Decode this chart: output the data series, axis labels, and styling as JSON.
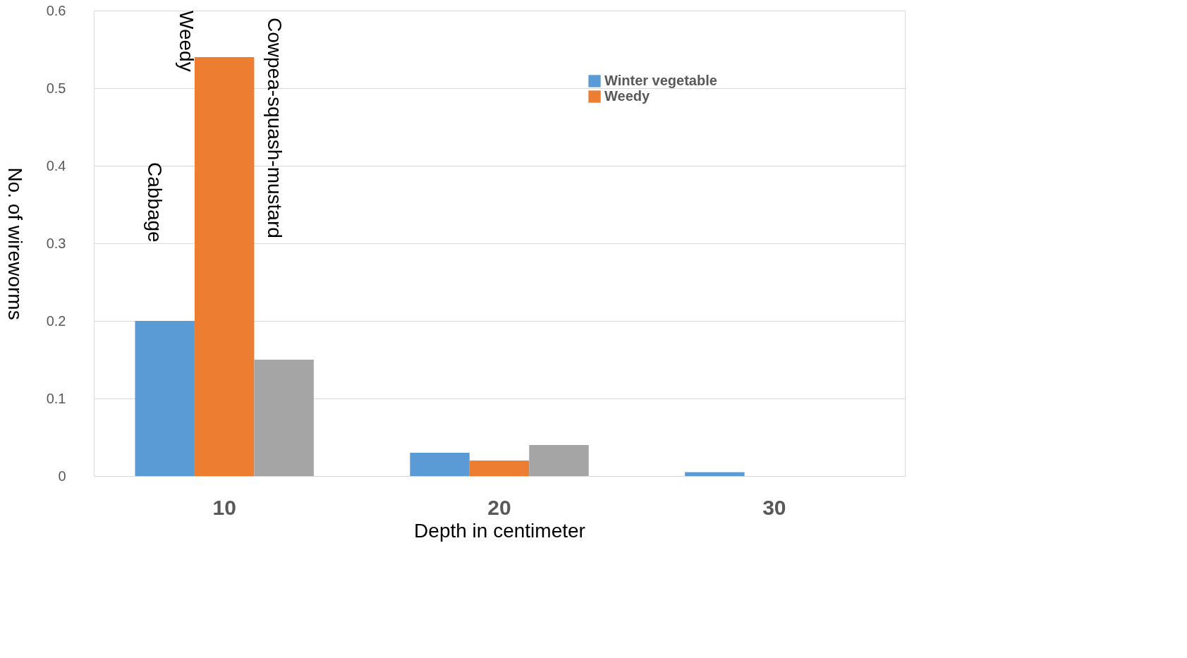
{
  "chart_data": {
    "type": "bar",
    "xlabel": "Depth in centimeter",
    "ylabel": "No. of wireworms",
    "categories": [
      "10",
      "20",
      "30"
    ],
    "series": [
      {
        "name": "Winter vegetable",
        "color": "#5b9bd5",
        "values": [
          0.2,
          0.03,
          0.005
        ]
      },
      {
        "name": "Weedy",
        "color": "#ed7d31",
        "values": [
          0.54,
          0.02,
          0
        ]
      },
      {
        "color": "#a5a5a5",
        "values": [
          0.15,
          0.04,
          0
        ]
      }
    ],
    "ylim": [
      0,
      0.6
    ],
    "yticks": [
      0,
      0.1,
      0.2,
      0.3,
      0.4,
      0.5,
      0.6
    ],
    "grid": "y",
    "legend": "top right",
    "annotations": [
      "Weedy",
      "Cowpea-squash-mustard",
      "Cabbage"
    ]
  }
}
